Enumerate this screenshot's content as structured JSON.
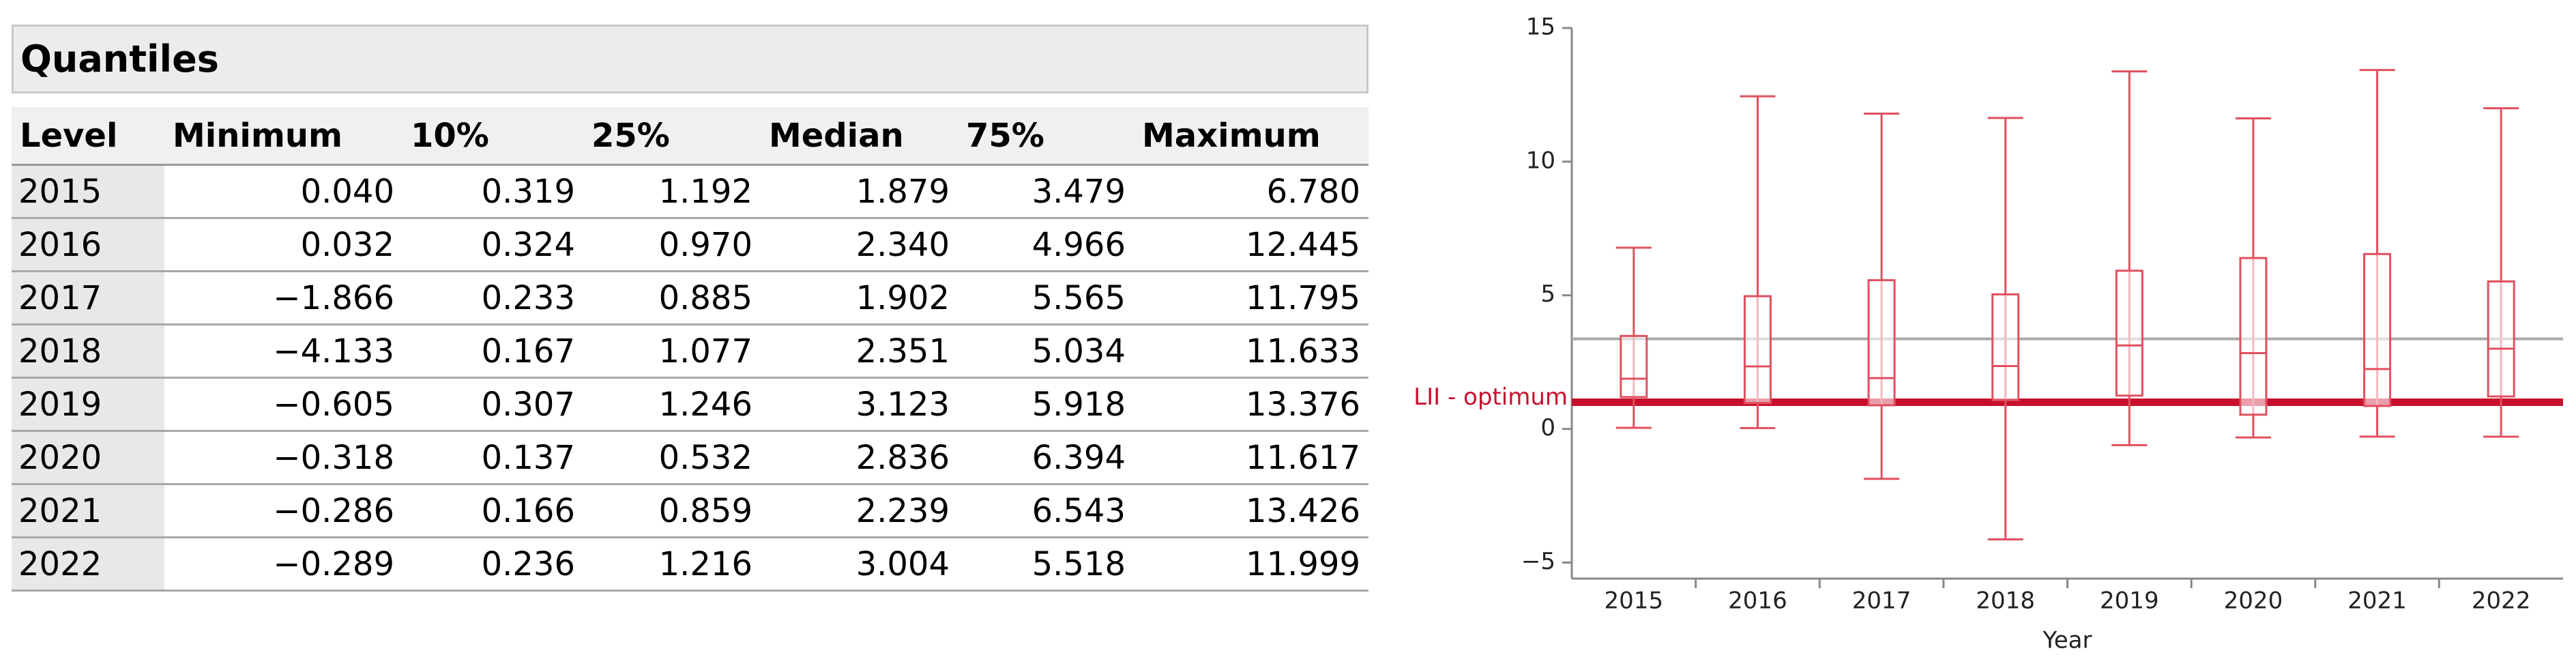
{
  "table": {
    "title": "Quantiles",
    "columns": [
      "Level",
      "Minimum",
      "10%",
      "25%",
      "Median",
      "75%",
      "Maximum"
    ],
    "rows": [
      [
        "2015",
        "0.040",
        "0.319",
        "1.192",
        "1.879",
        "3.479",
        "6.780"
      ],
      [
        "2016",
        "0.032",
        "0.324",
        "0.970",
        "2.340",
        "4.966",
        "12.445"
      ],
      [
        "2017",
        "−1.866",
        "0.233",
        "0.885",
        "1.902",
        "5.565",
        "11.795"
      ],
      [
        "2018",
        "−4.133",
        "0.167",
        "1.077",
        "2.351",
        "5.034",
        "11.633"
      ],
      [
        "2019",
        "−0.605",
        "0.307",
        "1.246",
        "3.123",
        "5.918",
        "13.376"
      ],
      [
        "2020",
        "−0.318",
        "0.137",
        "0.532",
        "2.836",
        "6.394",
        "11.617"
      ],
      [
        "2021",
        "−0.286",
        "0.166",
        "0.859",
        "2.239",
        "6.543",
        "13.426"
      ],
      [
        "2022",
        "−0.289",
        "0.236",
        "1.216",
        "3.004",
        "5.518",
        "11.999"
      ]
    ]
  },
  "chart_data": {
    "type": "box",
    "x_label": "Year",
    "categories": [
      "2015",
      "2016",
      "2017",
      "2018",
      "2019",
      "2020",
      "2021",
      "2022"
    ],
    "min": [
      0.04,
      0.032,
      -1.866,
      -4.133,
      -0.605,
      -0.318,
      -0.286,
      -0.289
    ],
    "q1": [
      1.192,
      0.97,
      0.885,
      1.077,
      1.246,
      0.532,
      0.859,
      1.216
    ],
    "median": [
      1.879,
      2.34,
      1.902,
      2.351,
      3.123,
      2.836,
      2.239,
      3.004
    ],
    "q3": [
      3.479,
      4.966,
      5.565,
      5.034,
      5.918,
      6.394,
      6.543,
      5.518
    ],
    "max": [
      6.78,
      12.445,
      11.795,
      11.633,
      13.376,
      11.617,
      13.426,
      11.999
    ],
    "color": "#e0505f",
    "ylim": [
      -5.6,
      15
    ],
    "yticks": [
      {
        "value": -5,
        "label": "−5"
      },
      0,
      5,
      10,
      15
    ],
    "ref_lines": [
      {
        "value": 3.37,
        "color": "#a8a8a8"
      },
      {
        "value": 1.0,
        "label": "LII - optimum",
        "color": "#c8102e"
      }
    ]
  }
}
